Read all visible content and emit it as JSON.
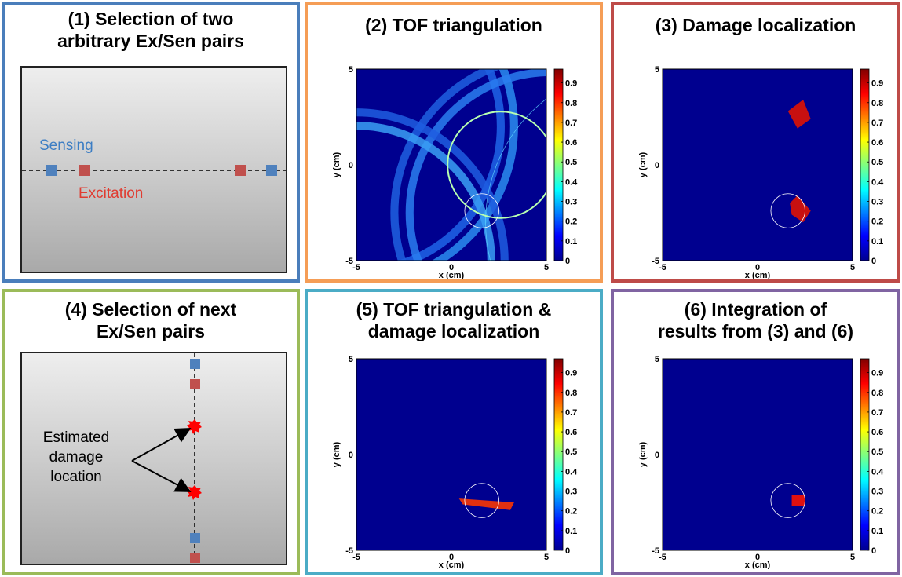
{
  "panels": [
    {
      "title_line1": "(1) Selection of two",
      "title_line2": "arbitrary Ex/Sen pairs",
      "border_color": "#4a7ebb"
    },
    {
      "title_line1": "(2) TOF triangulation",
      "title_line2": "",
      "border_color": "#f59d56"
    },
    {
      "title_line1": "(3) Damage localization",
      "title_line2": "",
      "border_color": "#be4b48"
    },
    {
      "title_line1": "(4) Selection of next",
      "title_line2": "Ex/Sen pairs",
      "border_color": "#9bbb59"
    },
    {
      "title_line1": "(5) TOF triangulation &",
      "title_line2": "damage localization",
      "border_color": "#4bacc6"
    },
    {
      "title_line1": "(6) Integration of",
      "title_line2": "results from (3) and (6)",
      "border_color": "#8064a2"
    }
  ],
  "diagram1": {
    "sensing_label": "Sensing",
    "excitation_label": "Excitation",
    "sensing_color": "#3b7dc4",
    "excitation_color": "#e03c31"
  },
  "diagram4": {
    "damage_label_line1": "Estimated",
    "damage_label_line2": "damage",
    "damage_label_line3": "location"
  },
  "plot_axes": {
    "xlabel": "x (cm)",
    "ylabel": "y (cm)",
    "x_ticks": [
      "-5",
      "0",
      "5"
    ],
    "y_ticks": [
      "5",
      "0",
      "-5"
    ]
  },
  "colorbar_ticks": [
    "0.9",
    "0.8",
    "0.7",
    "0.6",
    "0.5",
    "0.4",
    "0.3",
    "0.2",
    "0.1",
    "0"
  ],
  "colors": {
    "plot_background": "#00008f",
    "sensor": "#4f81bd",
    "actuator": "#c0504d",
    "damage": "#ff0000"
  }
}
